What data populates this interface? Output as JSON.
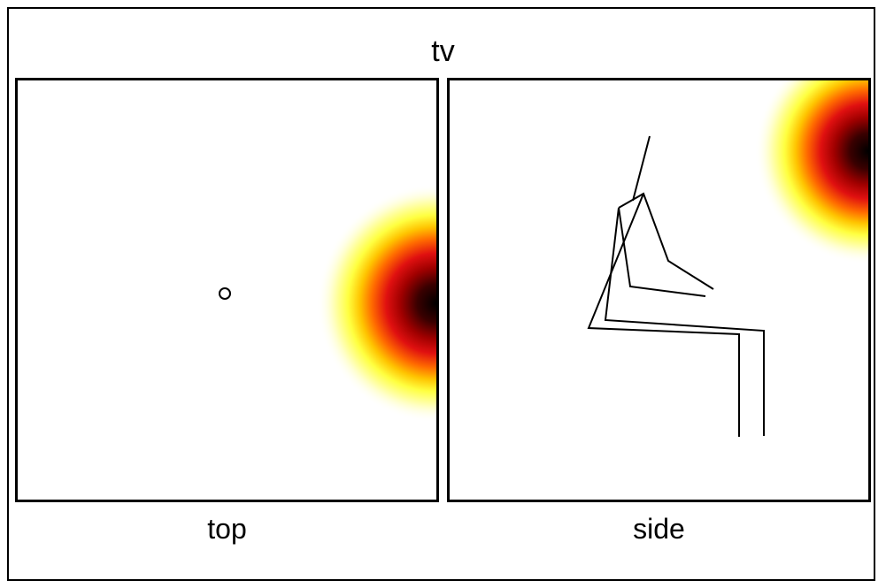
{
  "figure": {
    "title": "tv",
    "panels": [
      {
        "caption": "top"
      },
      {
        "caption": "side"
      }
    ]
  },
  "colors": {
    "heatmap": [
      "#ffffff",
      "#fffde0",
      "#ffff70",
      "#ffe000",
      "#ff8c00",
      "#e01010",
      "#8a0000",
      "#000000"
    ],
    "stroke": "#000000"
  }
}
